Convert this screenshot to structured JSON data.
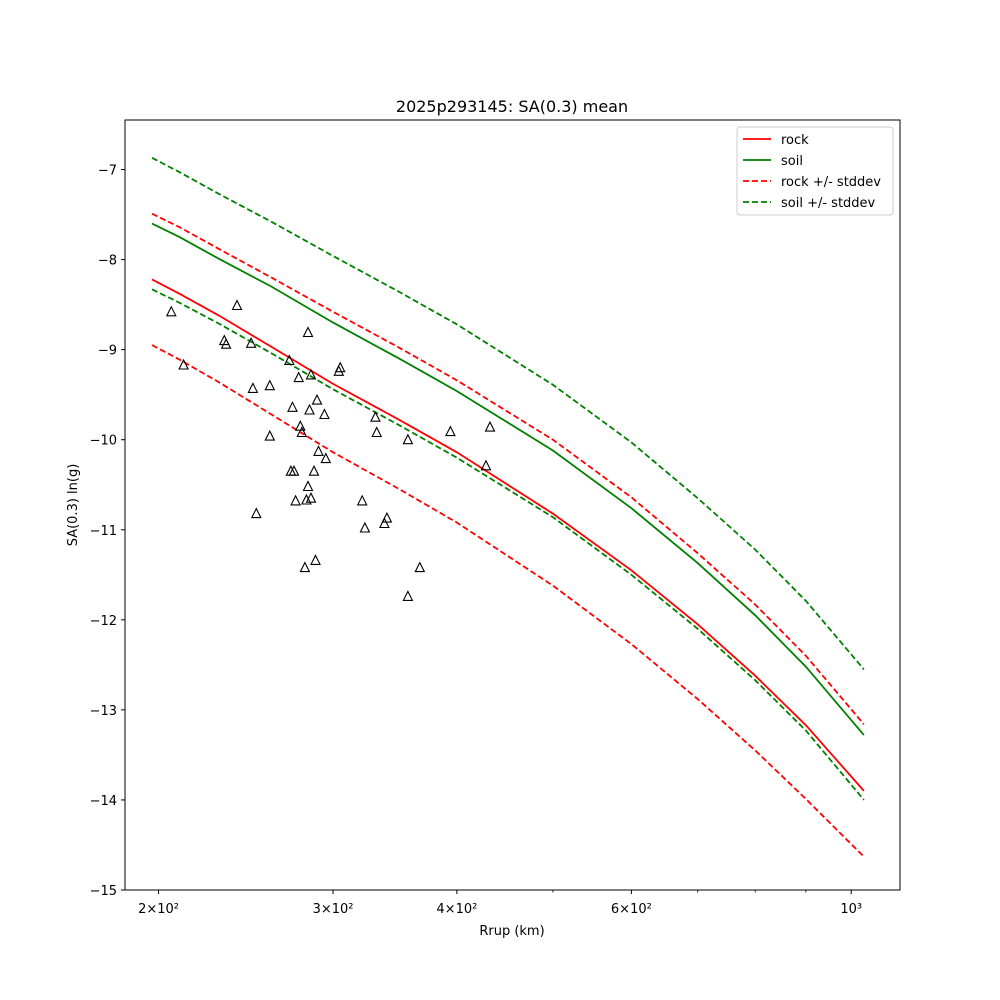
{
  "chart_data": {
    "type": "line",
    "title": "2025p293145: SA(0.3) mean",
    "xlabel": "Rrup (km)",
    "ylabel": "SA(0.3) ln(g)",
    "xscale": "log",
    "xlim": [
      185,
      1120
    ],
    "ylim": [
      -15,
      -6.45
    ],
    "grid": false,
    "legend_position": "top-right",
    "x_ticks": [
      {
        "value": 200,
        "label": "2×10²"
      },
      {
        "value": 300,
        "label": "3×10²"
      },
      {
        "value": 400,
        "label": "4×10²"
      },
      {
        "value": 600,
        "label": "6×10²"
      },
      {
        "value": 1000,
        "label": "10³"
      }
    ],
    "x_minor_ticks": [
      500,
      700,
      800,
      900
    ],
    "y_ticks": [
      {
        "value": -15,
        "label": "−15"
      },
      {
        "value": -14,
        "label": "−14"
      },
      {
        "value": -13,
        "label": "−13"
      },
      {
        "value": -12,
        "label": "−12"
      },
      {
        "value": -11,
        "label": "−11"
      },
      {
        "value": -10,
        "label": "−10"
      },
      {
        "value": -9,
        "label": "−9"
      },
      {
        "value": -8,
        "label": "−8"
      },
      {
        "value": -7,
        "label": "−7"
      }
    ],
    "x": [
      197,
      210,
      230,
      260,
      300,
      350,
      400,
      500,
      600,
      700,
      800,
      900,
      1030
    ],
    "series": [
      {
        "name": "rock",
        "color": "#ff0000",
        "style": "solid",
        "values": [
          -8.22,
          -8.38,
          -8.62,
          -8.97,
          -9.38,
          -9.78,
          -10.14,
          -10.82,
          -11.45,
          -12.05,
          -12.62,
          -13.17,
          -13.9
        ]
      },
      {
        "name": "soil",
        "color": "#008000",
        "style": "solid",
        "values": [
          -7.6,
          -7.75,
          -7.99,
          -8.3,
          -8.7,
          -9.1,
          -9.46,
          -10.12,
          -10.76,
          -11.37,
          -11.95,
          -12.52,
          -13.28
        ]
      },
      {
        "name": "rock +/- stddev",
        "color": "#ff0000",
        "style": "dashed",
        "values": [
          -7.49,
          -7.64,
          -7.88,
          -8.2,
          -8.58,
          -8.98,
          -9.34,
          -10.0,
          -10.64,
          -11.26,
          -11.83,
          -12.4,
          -13.16
        ]
      },
      {
        "name": "",
        "color": "#ff0000",
        "style": "dashed",
        "values": [
          -8.95,
          -9.11,
          -9.36,
          -9.72,
          -10.14,
          -10.55,
          -10.92,
          -11.62,
          -12.27,
          -12.88,
          -13.45,
          -13.99,
          -14.63
        ]
      },
      {
        "name": "soil +/- stddev",
        "color": "#008000",
        "style": "dashed",
        "values": [
          -6.87,
          -7.03,
          -7.27,
          -7.58,
          -7.96,
          -8.36,
          -8.72,
          -9.39,
          -10.03,
          -10.65,
          -11.22,
          -11.79,
          -12.55
        ]
      },
      {
        "name": "",
        "color": "#008000",
        "style": "dashed",
        "values": [
          -8.33,
          -8.48,
          -8.71,
          -9.04,
          -9.44,
          -9.84,
          -10.2,
          -10.86,
          -11.5,
          -12.1,
          -12.67,
          -13.23,
          -14.0
        ]
      }
    ],
    "observations": {
      "marker": "triangle-open",
      "color": "#000000",
      "points": [
        [
          206,
          -8.58
        ],
        [
          212,
          -9.17
        ],
        [
          233,
          -8.9
        ],
        [
          234,
          -8.94
        ],
        [
          240,
          -8.51
        ],
        [
          248,
          -8.93
        ],
        [
          249,
          -9.43
        ],
        [
          251,
          -10.82
        ],
        [
          259,
          -9.4
        ],
        [
          259,
          -9.96
        ],
        [
          271,
          -9.12
        ],
        [
          272,
          -10.35
        ],
        [
          273,
          -9.64
        ],
        [
          274,
          -10.35
        ],
        [
          275,
          -10.68
        ],
        [
          277,
          -9.31
        ],
        [
          278,
          -9.85
        ],
        [
          279,
          -9.92
        ],
        [
          281,
          -11.42
        ],
        [
          282,
          -10.67
        ],
        [
          283,
          -8.81
        ],
        [
          283,
          -10.52
        ],
        [
          284,
          -9.67
        ],
        [
          285,
          -9.28
        ],
        [
          285,
          -10.65
        ],
        [
          287,
          -10.35
        ],
        [
          288,
          -11.34
        ],
        [
          289,
          -9.56
        ],
        [
          290,
          -10.13
        ],
        [
          294,
          -9.72
        ],
        [
          295,
          -10.21
        ],
        [
          304,
          -9.24
        ],
        [
          305,
          -9.2
        ],
        [
          321,
          -10.68
        ],
        [
          323,
          -10.98
        ],
        [
          331,
          -9.75
        ],
        [
          332,
          -9.92
        ],
        [
          338,
          -10.93
        ],
        [
          340,
          -10.87
        ],
        [
          357,
          -10.0
        ],
        [
          357,
          -11.74
        ],
        [
          367,
          -11.42
        ],
        [
          394,
          -9.91
        ],
        [
          428,
          -10.29
        ],
        [
          432,
          -9.86
        ]
      ]
    }
  }
}
